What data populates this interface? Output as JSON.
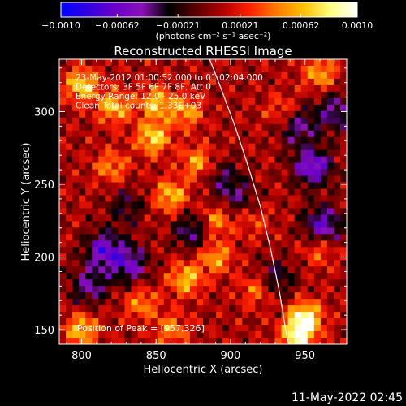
{
  "chart_data": {
    "type": "heatmap",
    "title": "Reconstructed RHESSI Image",
    "xlabel": "Heliocentric X (arcsec)",
    "ylabel": "Heliocentric Y (arcsec)",
    "xlim": [
      785,
      978
    ],
    "ylim": [
      140,
      336
    ],
    "x_ticks": [
      800,
      850,
      900,
      950
    ],
    "y_ticks": [
      150,
      200,
      250,
      300
    ],
    "colorbar": {
      "label": "(photons cm⁻² s⁻¹ asec⁻²)",
      "range": [
        -0.001,
        0.001
      ],
      "tick_labels": [
        "−0.0010",
        "−0.00062",
        "−0.00021",
        "0.00021",
        "0.00062",
        "0.0010"
      ],
      "tick_values": [
        -0.001,
        -0.00062,
        -0.00021,
        0.00021,
        0.00062,
        0.001
      ],
      "colors": [
        "#0000ff",
        "#3000e0",
        "#6a00c8",
        "#8a10b8",
        "#000000",
        "#5a0000",
        "#b00000",
        "#ff2000",
        "#ff7a00",
        "#ffc000",
        "#ffff80",
        "#ffffff"
      ]
    },
    "annotations": [
      "23-May-2012 01:00:52.000 to 01:02:04.000",
      "Detectors: 3F 5F 6F 7F 8F, Att 0",
      "Energy Range: 12.0 - 25.0 keV",
      "Clean    Total counts: 1.33E+03"
    ],
    "peak_label": "Position of Peak = [957,326]",
    "peak_position": [
      957,
      326
    ],
    "limb": [
      [
        886,
        336
      ],
      [
        894,
        315
      ],
      [
        903,
        290
      ],
      [
        912,
        262
      ],
      [
        920,
        235
      ],
      [
        927,
        205
      ],
      [
        933,
        175
      ],
      [
        937,
        150
      ],
      [
        939,
        140
      ]
    ],
    "hot_regions": [
      {
        "x": 800,
        "y": 318,
        "w": 0.8
      },
      {
        "x": 822,
        "y": 303,
        "w": 0.7
      },
      {
        "x": 850,
        "y": 306,
        "w": 0.7
      },
      {
        "x": 870,
        "y": 300,
        "w": 0.6
      },
      {
        "x": 848,
        "y": 282,
        "w": 0.8
      },
      {
        "x": 878,
        "y": 265,
        "w": 0.6
      },
      {
        "x": 860,
        "y": 242,
        "w": 0.7
      },
      {
        "x": 820,
        "y": 262,
        "w": 0.5
      },
      {
        "x": 890,
        "y": 225,
        "w": 0.6
      },
      {
        "x": 890,
        "y": 200,
        "w": 0.6
      },
      {
        "x": 870,
        "y": 185,
        "w": 0.7
      },
      {
        "x": 840,
        "y": 168,
        "w": 0.5
      },
      {
        "x": 800,
        "y": 150,
        "w": 0.7
      },
      {
        "x": 860,
        "y": 150,
        "w": 0.5
      },
      {
        "x": 950,
        "y": 158,
        "w": 1.0
      },
      {
        "x": 945,
        "y": 145,
        "w": 0.9
      },
      {
        "x": 918,
        "y": 178,
        "w": 0.5
      },
      {
        "x": 960,
        "y": 326,
        "w": 0.6
      },
      {
        "x": 960,
        "y": 205,
        "w": 0.4
      },
      {
        "x": 935,
        "y": 300,
        "w": 0.4
      },
      {
        "x": 915,
        "y": 225,
        "w": 0.3
      }
    ],
    "cold_regions": [
      {
        "x": 815,
        "y": 205,
        "w": 0.8
      },
      {
        "x": 832,
        "y": 195,
        "w": 0.7
      },
      {
        "x": 875,
        "y": 218,
        "w": 0.6
      },
      {
        "x": 895,
        "y": 255,
        "w": 0.4
      },
      {
        "x": 955,
        "y": 262,
        "w": 0.9
      },
      {
        "x": 962,
        "y": 222,
        "w": 0.8
      },
      {
        "x": 945,
        "y": 290,
        "w": 0.6
      },
      {
        "x": 970,
        "y": 300,
        "w": 0.6
      },
      {
        "x": 905,
        "y": 240,
        "w": 0.4
      },
      {
        "x": 930,
        "y": 185,
        "w": 0.5
      },
      {
        "x": 805,
        "y": 180,
        "w": 0.6
      },
      {
        "x": 830,
        "y": 235,
        "w": 0.4
      }
    ]
  },
  "footer": {
    "date": "11-May-2022 02:45"
  }
}
